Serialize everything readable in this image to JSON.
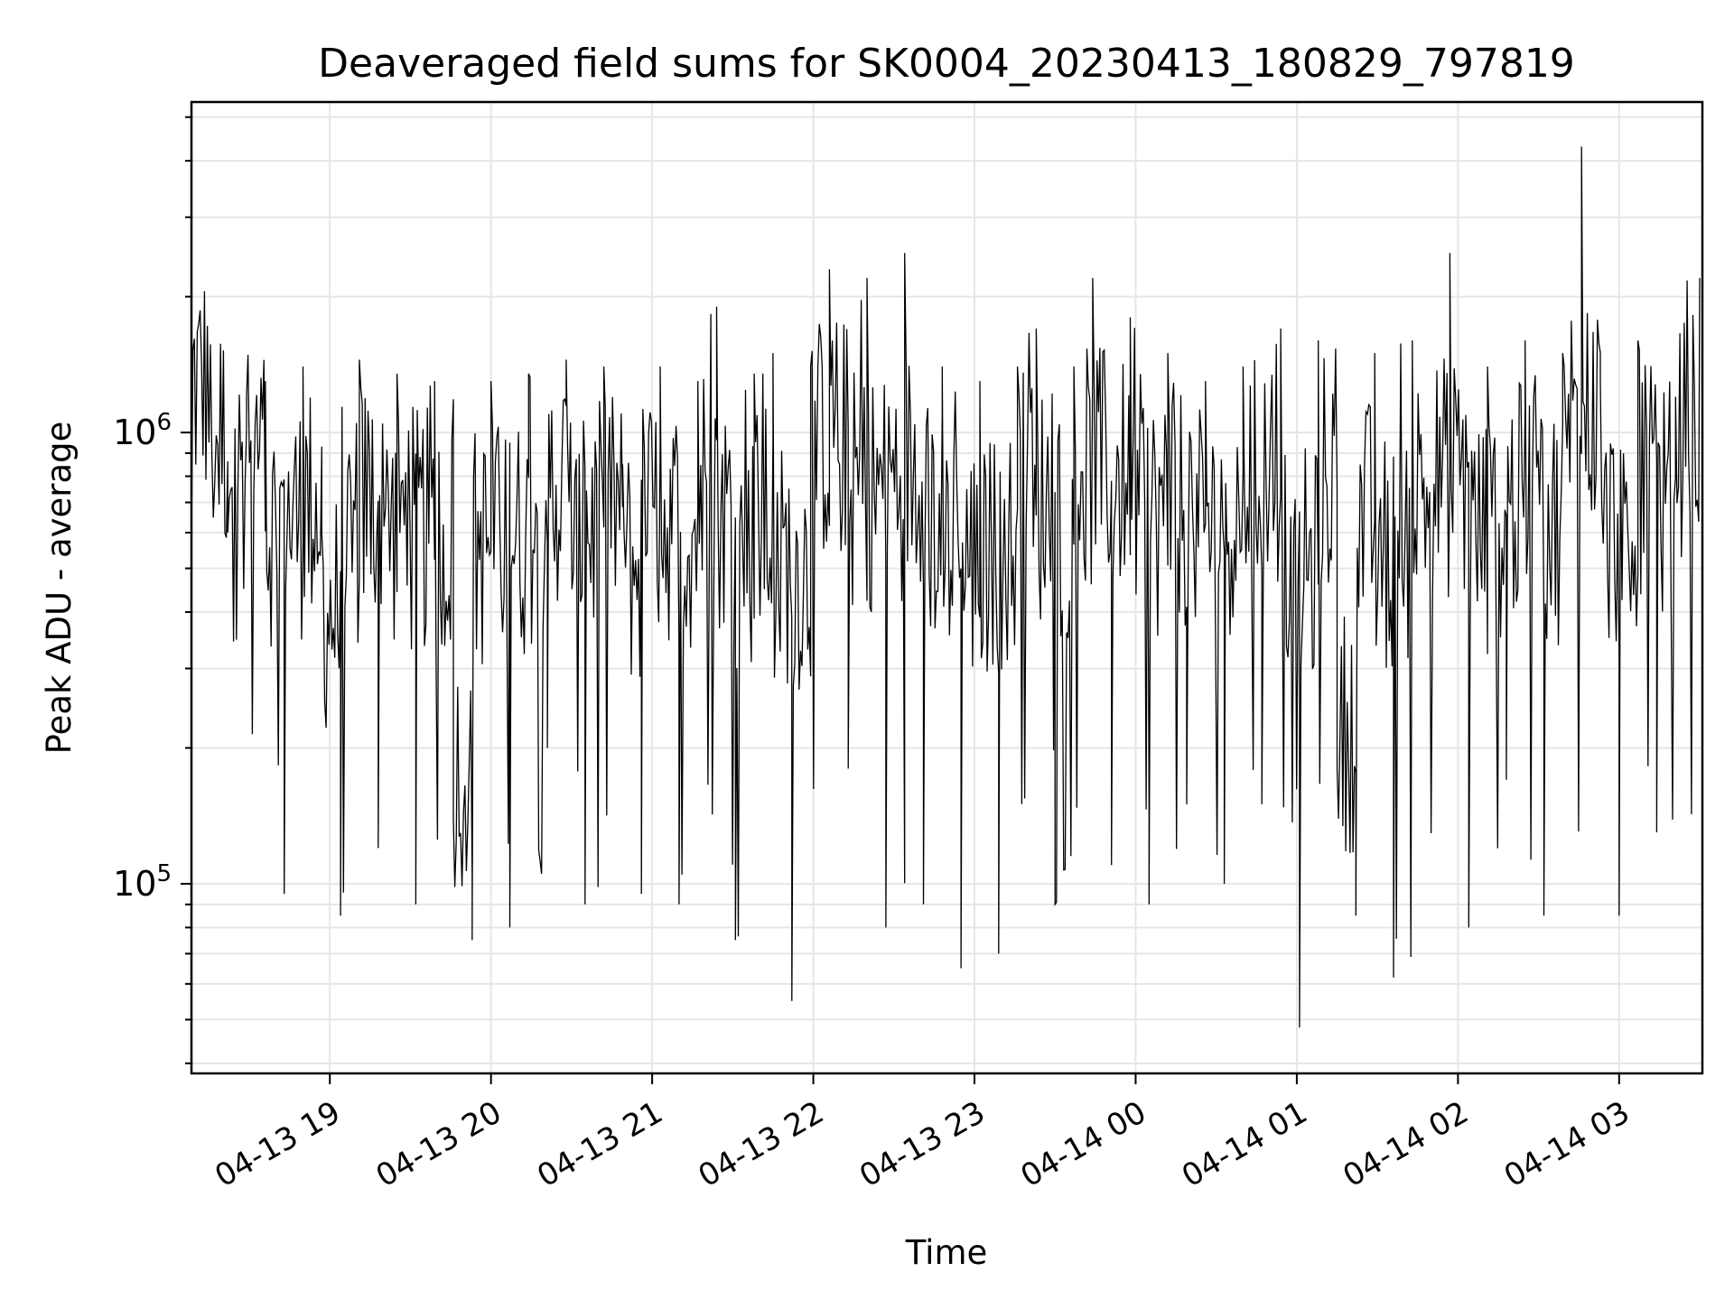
{
  "chart_data": {
    "type": "line",
    "title": "Deaveraged field sums for SK0004_20230413_180829_797819",
    "xlabel": "Time",
    "ylabel": "Peak ADU - average",
    "yscale": "log",
    "ylim": [
      38000,
      5400000
    ],
    "xlim": [
      "2023-04-13 18:08:29",
      "2023-04-14 03:31:00"
    ],
    "grid": true,
    "line_color": "#000000",
    "x_ticks": [
      {
        "t": "2023-04-13 19:00",
        "label": "04-13 19"
      },
      {
        "t": "2023-04-13 20:00",
        "label": "04-13 20"
      },
      {
        "t": "2023-04-13 21:00",
        "label": "04-13 21"
      },
      {
        "t": "2023-04-13 22:00",
        "label": "04-13 22"
      },
      {
        "t": "2023-04-13 23:00",
        "label": "04-13 23"
      },
      {
        "t": "2023-04-14 00:00",
        "label": "04-14 00"
      },
      {
        "t": "2023-04-14 01:00",
        "label": "04-14 01"
      },
      {
        "t": "2023-04-14 02:00",
        "label": "04-14 02"
      },
      {
        "t": "2023-04-14 03:00",
        "label": "04-14 03"
      }
    ],
    "y_ticks": [
      {
        "value": 100000,
        "base": "10",
        "exp": "5"
      },
      {
        "value": 1000000,
        "base": "10",
        "exp": "6"
      }
    ],
    "series": [
      {
        "x": [
          "2023-04-13 18:08:29",
          "2023-04-13 18:15",
          "2023-04-13 18:22",
          "2023-04-13 18:29",
          "2023-04-13 18:36",
          "2023-04-13 18:43",
          "2023-04-13 18:50",
          "2023-04-13 18:57",
          "2023-04-13 19:04",
          "2023-04-13 19:11",
          "2023-04-13 19:18",
          "2023-04-13 19:25",
          "2023-04-13 19:32",
          "2023-04-13 19:39",
          "2023-04-13 19:46",
          "2023-04-13 19:53",
          "2023-04-13 20:00",
          "2023-04-13 20:07",
          "2023-04-13 20:14",
          "2023-04-13 20:21",
          "2023-04-13 20:28",
          "2023-04-13 20:35",
          "2023-04-13 20:42",
          "2023-04-13 20:49",
          "2023-04-13 20:56",
          "2023-04-13 21:03",
          "2023-04-13 21:10",
          "2023-04-13 21:17",
          "2023-04-13 21:24",
          "2023-04-13 21:31",
          "2023-04-13 21:38",
          "2023-04-13 21:45",
          "2023-04-13 21:52",
          "2023-04-13 21:59",
          "2023-04-13 22:06",
          "2023-04-13 22:13",
          "2023-04-13 22:20",
          "2023-04-13 22:27",
          "2023-04-13 22:34",
          "2023-04-13 22:41",
          "2023-04-13 22:48",
          "2023-04-13 22:55",
          "2023-04-13 23:02",
          "2023-04-13 23:09",
          "2023-04-13 23:16",
          "2023-04-13 23:23",
          "2023-04-13 23:30",
          "2023-04-13 23:37",
          "2023-04-13 23:44",
          "2023-04-13 23:51",
          "2023-04-13 23:58",
          "2023-04-14 00:05",
          "2023-04-14 00:12",
          "2023-04-14 00:19",
          "2023-04-14 00:26",
          "2023-04-14 00:33",
          "2023-04-14 00:40",
          "2023-04-14 00:47",
          "2023-04-14 00:54",
          "2023-04-14 01:01",
          "2023-04-14 01:08",
          "2023-04-14 01:15",
          "2023-04-14 01:22",
          "2023-04-14 01:29",
          "2023-04-14 01:36",
          "2023-04-14 01:43",
          "2023-04-14 01:50",
          "2023-04-14 01:57",
          "2023-04-14 02:04",
          "2023-04-14 02:11",
          "2023-04-14 02:18",
          "2023-04-14 02:25",
          "2023-04-14 02:32",
          "2023-04-14 02:39",
          "2023-04-14 02:46",
          "2023-04-14 02:53",
          "2023-04-14 03:00",
          "2023-04-14 03:07",
          "2023-04-14 03:14",
          "2023-04-14 03:21",
          "2023-04-14 03:30"
        ],
        "y": [
          550000,
          950000,
          600000,
          1200000,
          1300000,
          95000,
          1400000,
          600000,
          85000,
          1450000,
          120000,
          1350000,
          90000,
          1300000,
          140000,
          75000,
          1300000,
          80000,
          1350000,
          200000,
          1450000,
          90000,
          1400000,
          850000,
          95000,
          1400000,
          90000,
          1300000,
          1900000,
          75000,
          1350000,
          1500000,
          55000,
          1400000,
          2300000,
          180000,
          2200000,
          80000,
          2500000,
          90000,
          1400000,
          65000,
          1300000,
          70000,
          1400000,
          1700000,
          90000,
          1400000,
          2200000,
          110000,
          1800000,
          90000,
          1500000,
          150000,
          1300000,
          100000,
          1400000,
          150000,
          1700000,
          48000,
          1600000,
          180000,
          85000,
          1500000,
          62000,
          1600000,
          130000,
          2500000,
          80000,
          1400000,
          170000,
          1600000,
          85000,
          1500000,
          4300000,
          1300000,
          85000,
          1600000,
          130000,
          1200000,
          2200000
        ],
        "low": [
          550000,
          600000,
          320000,
          180000,
          170000,
          95000,
          160000,
          110000,
          85000,
          120000,
          110000,
          90000,
          90000,
          100000,
          80000,
          75000,
          100000,
          80000,
          95000,
          130000,
          140000,
          90000,
          110000,
          100000,
          95000,
          100000,
          90000,
          130000,
          95000,
          75000,
          85000,
          80000,
          55000,
          160000,
          130000,
          130000,
          80000,
          80000,
          140000,
          90000,
          120000,
          65000,
          130000,
          70000,
          130000,
          160000,
          90000,
          140000,
          100000,
          110000,
          120000,
          90000,
          100000,
          150000,
          110000,
          100000,
          140000,
          150000,
          130000,
          48000,
          130000,
          140000,
          85000,
          120000,
          62000,
          110000,
          130000,
          80000,
          80000,
          95000,
          170000,
          95000,
          85000,
          110000,
          90000,
          130000,
          85000,
          160000,
          130000,
          140000,
          420000
        ]
      }
    ]
  }
}
